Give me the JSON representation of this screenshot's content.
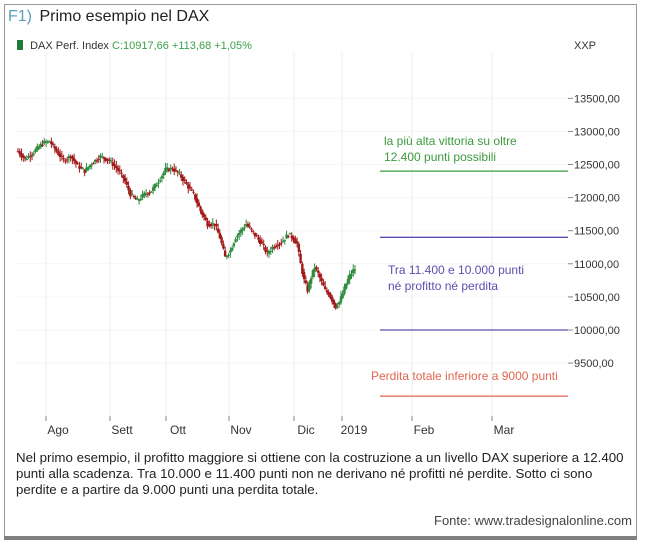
{
  "header": {
    "tag": "F1)",
    "title": "Primo esempio nel DAX"
  },
  "legend": {
    "name": "DAX Perf. Index",
    "quote": "C:10917,66 +113,68 +1,05%"
  },
  "ticker": "XXP",
  "colors": {
    "up": "#2e8b3e",
    "down": "#a01818",
    "green_line": "#3c9a3c",
    "blue_line": "#5a4fb0",
    "red_line": "#e06650",
    "grid": "#ededed"
  },
  "chart_data": {
    "type": "candlestick",
    "y_ticks": [
      "13500,00",
      "13000,00",
      "12500,00",
      "12000,00",
      "11500,00",
      "11000,00",
      "10500,00",
      "10000,00",
      "9500,00"
    ],
    "y_values": [
      13500,
      13000,
      12500,
      12000,
      11500,
      11000,
      10500,
      10000,
      9500
    ],
    "ylim": [
      8700,
      14200
    ],
    "x_ticks": [
      "Ago",
      "Sett",
      "Ott",
      "Nov",
      "Dic",
      "2019",
      "Feb",
      "Mar"
    ],
    "price_trace": [
      [
        1,
        12700
      ],
      [
        5,
        12580
      ],
      [
        10,
        12690
      ],
      [
        15,
        12820
      ],
      [
        19,
        12850
      ],
      [
        23,
        12700
      ],
      [
        27,
        12560
      ],
      [
        31,
        12630
      ],
      [
        35,
        12480
      ],
      [
        39,
        12400
      ],
      [
        43,
        12520
      ],
      [
        48,
        12620
      ],
      [
        53,
        12560
      ],
      [
        57,
        12450
      ],
      [
        61,
        12300
      ],
      [
        65,
        12050
      ],
      [
        69,
        11950
      ],
      [
        73,
        12050
      ],
      [
        77,
        12100
      ],
      [
        81,
        12250
      ],
      [
        85,
        12420
      ],
      [
        89,
        12440
      ],
      [
        93,
        12350
      ],
      [
        97,
        12200
      ],
      [
        101,
        12050
      ],
      [
        105,
        11800
      ],
      [
        109,
        11600
      ],
      [
        113,
        11600
      ],
      [
        116,
        11400
      ],
      [
        119,
        11100
      ],
      [
        122,
        11200
      ],
      [
        125,
        11400
      ],
      [
        128,
        11500
      ],
      [
        131,
        11600
      ],
      [
        134,
        11500
      ],
      [
        137,
        11400
      ],
      [
        140,
        11300
      ],
      [
        143,
        11150
      ],
      [
        146,
        11250
      ],
      [
        149,
        11300
      ],
      [
        152,
        11350
      ],
      [
        155,
        11450
      ],
      [
        158,
        11380
      ],
      [
        160,
        11300
      ],
      [
        162,
        11000
      ],
      [
        164,
        10750
      ],
      [
        166,
        10600
      ],
      [
        168,
        10800
      ],
      [
        170,
        10950
      ],
      [
        172,
        10850
      ],
      [
        174,
        10720
      ],
      [
        176,
        10600
      ],
      [
        178,
        10550
      ],
      [
        180,
        10450
      ],
      [
        182,
        10350
      ],
      [
        184,
        10420
      ],
      [
        186,
        10550
      ],
      [
        188,
        10700
      ],
      [
        190,
        10820
      ],
      [
        192,
        10900
      ],
      [
        193,
        10917.66
      ]
    ],
    "levels": [
      {
        "value": 12400,
        "color_key": "green_line",
        "label": [
          "la più alta vittoria su oltre",
          "12.400 punti possibili"
        ]
      },
      {
        "value": 11400,
        "color_key": "blue_line",
        "label": []
      },
      {
        "value": 10000,
        "color_key": "blue_line",
        "label": [
          "Tra 11.400 e 10.000 punti",
          "né profitto né perdita"
        ]
      },
      {
        "value": 9000,
        "color_key": "red_line",
        "label": [
          "Perdita totale inferiore a 9000 punti"
        ]
      }
    ]
  },
  "caption": "Nel primo esempio, il profitto maggiore si ottiene con la costruzione a un livello DAX superiore a 12.400 punti alla scadenza. Tra 10.000 e 11.400 punti non ne derivano né profitti né perdite. Sotto ci sono perdite  e a partire da 9.000 punti una perdita totale.",
  "source": "Fonte: www.tradesignalonline.com"
}
